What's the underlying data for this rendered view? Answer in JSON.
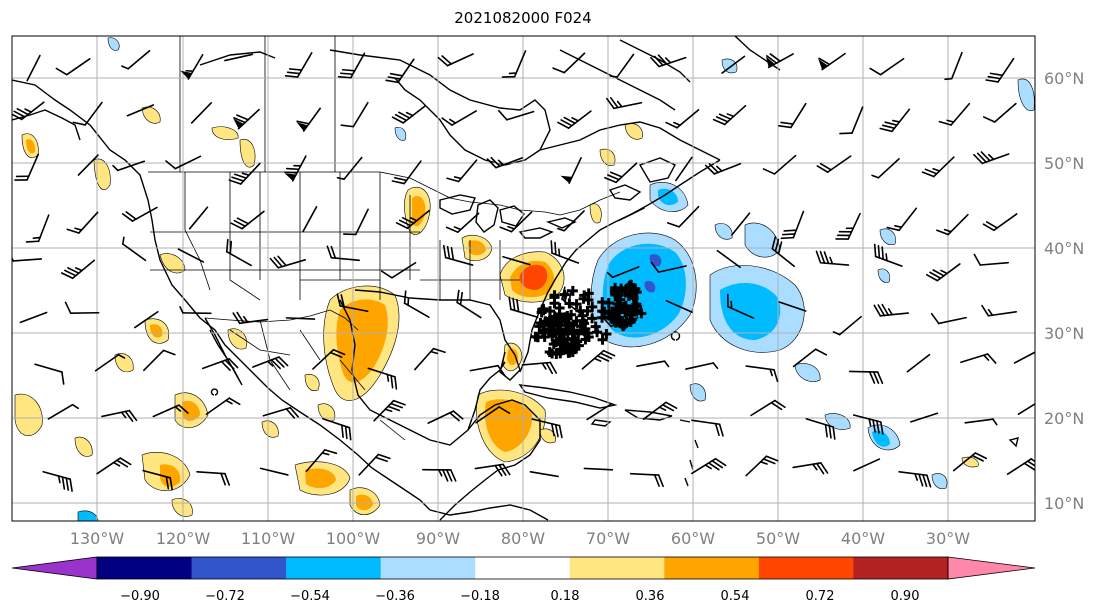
{
  "title": "2021082000 F024",
  "lon_labels": [
    "130°W",
    "120°W",
    "110°W",
    "100°W",
    "90°W",
    "80°W",
    "70°W",
    "60°W",
    "50°W",
    "40°W",
    "30°W"
  ],
  "lat_labels": [
    "60°N",
    "50°N",
    "40°N",
    "30°N",
    "20°N",
    "10°N"
  ],
  "colorbar": {
    "levels": [
      "−0.90",
      "−0.72",
      "−0.54",
      "−0.36",
      "−0.18",
      "0.18",
      "0.36",
      "0.54",
      "0.72",
      "0.90"
    ],
    "colors": [
      "#9933cc",
      "#000080",
      "#3355cc",
      "#00bbff",
      "#aaddff",
      "#ffffff",
      "#ffe680",
      "#ffa500",
      "#ff4500",
      "#b22222",
      "#ff88aa"
    ]
  },
  "colors": {
    "positive_light": "#ffe680",
    "positive_mid": "#ffa500",
    "positive_strong": "#ff4500",
    "negative_light": "#aaddff",
    "negative_mid": "#00bbff",
    "negative_strong": "#3355cc",
    "grid": "#b0b0b0",
    "marker": "#000000"
  },
  "field_type": "contour-fill with wind barbs and black plus markers"
}
